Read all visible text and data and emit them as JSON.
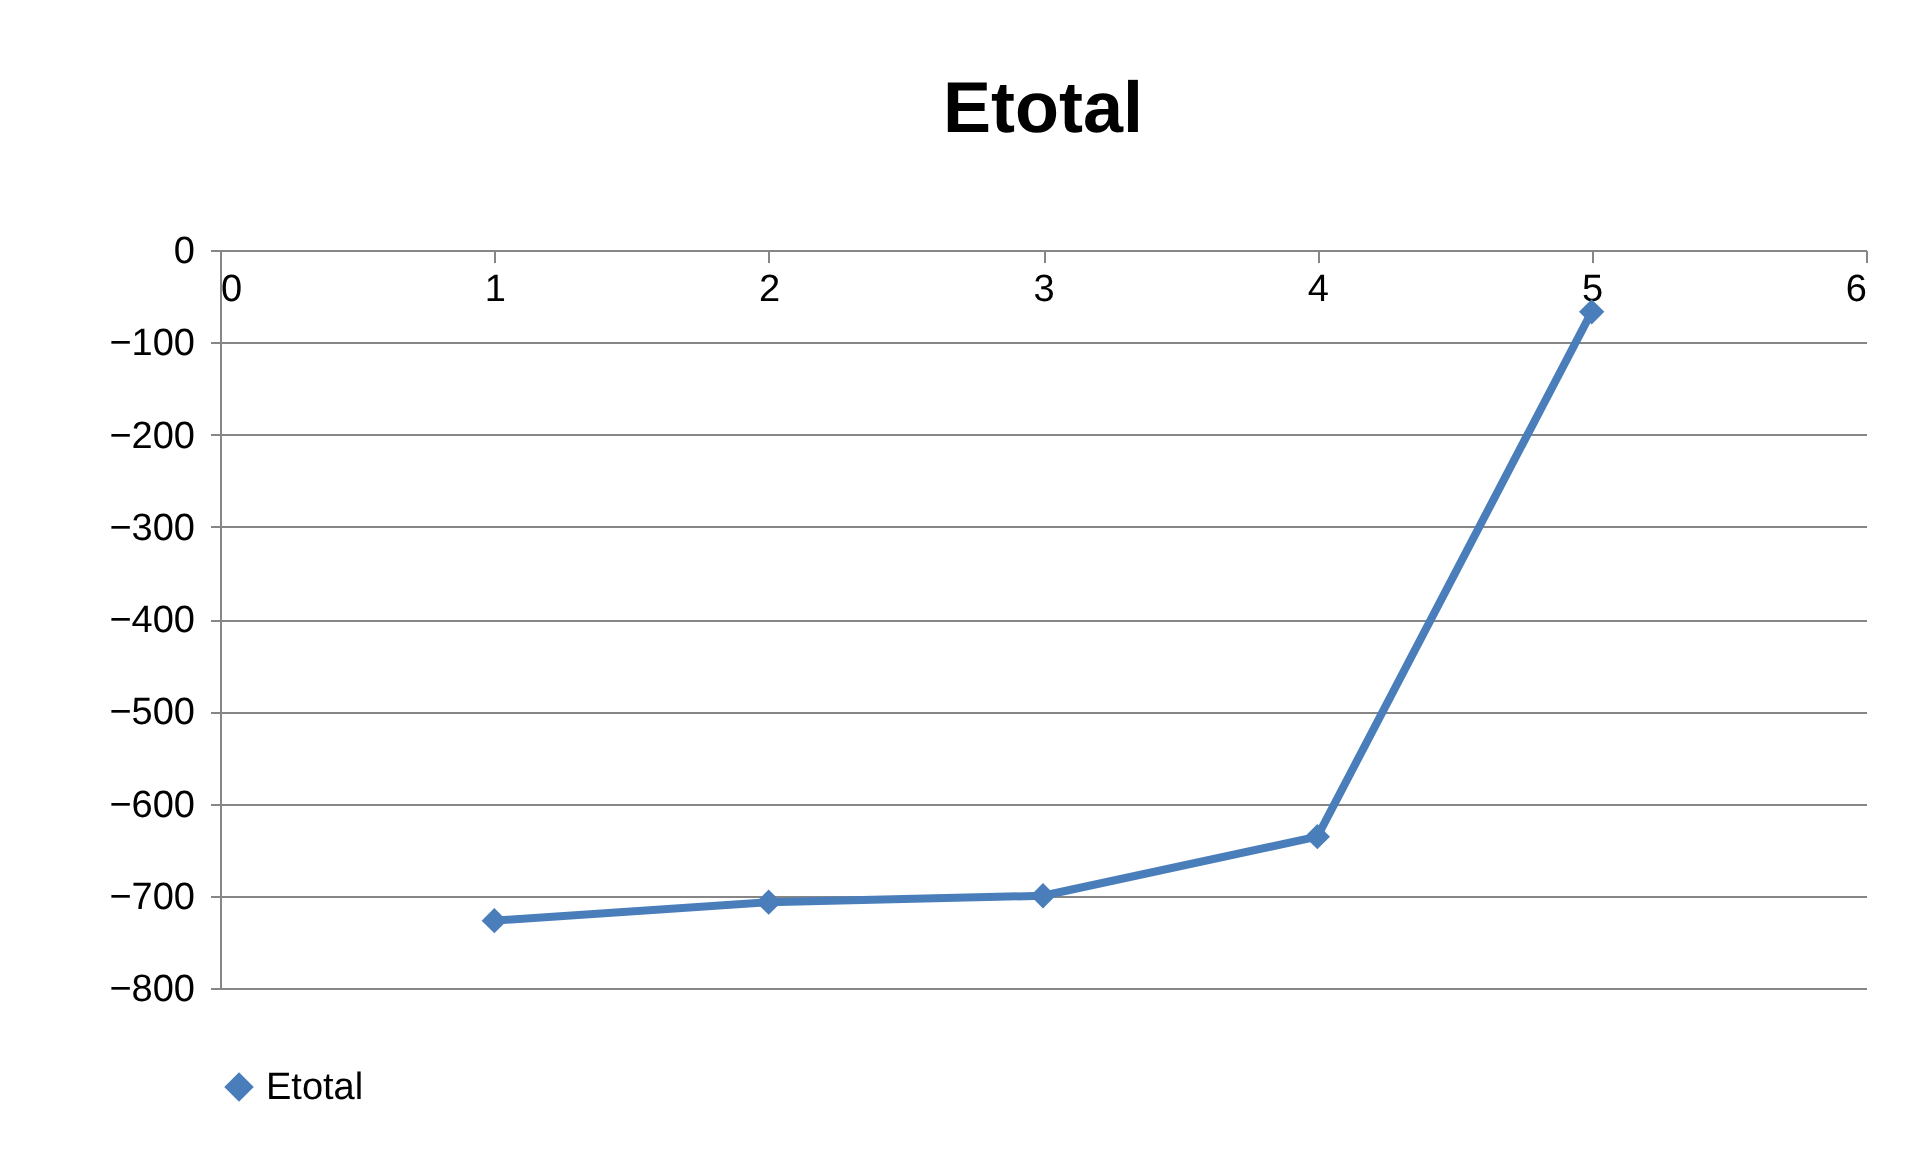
{
  "chart_data": {
    "type": "line",
    "title": "Etotal",
    "x": [
      1,
      2,
      3,
      4,
      5
    ],
    "series": [
      {
        "name": "Etotal",
        "color": "#4a7ebb",
        "values": [
          -727,
          -707,
          -700,
          -636,
          -67
        ]
      }
    ],
    "xlim": [
      0,
      6
    ],
    "xticks": [
      0,
      1,
      2,
      3,
      4,
      5,
      6
    ],
    "ylim": [
      -800,
      0
    ],
    "yticks": [
      -800,
      -700,
      -600,
      -500,
      -400,
      -300,
      -200,
      -100,
      0
    ],
    "grid": "y",
    "legend": "bottom",
    "marker": "diamond",
    "line_style": "solid"
  }
}
